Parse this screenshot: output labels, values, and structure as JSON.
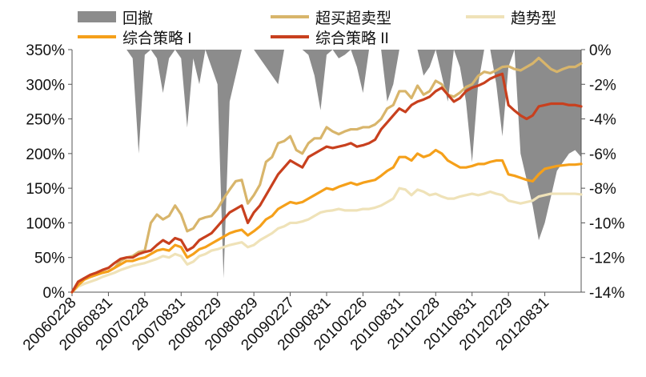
{
  "chart_data": {
    "type": "line",
    "x": [
      "20060228",
      "20060331",
      "20060428",
      "20060531",
      "20060630",
      "20060731",
      "20060831",
      "20060929",
      "20061031",
      "20061130",
      "20061229",
      "20070131",
      "20070228",
      "20070330",
      "20070430",
      "20070531",
      "20070629",
      "20070731",
      "20070831",
      "20070928",
      "20071031",
      "20071130",
      "20071228",
      "20080131",
      "20080229",
      "20080331",
      "20080430",
      "20080530",
      "20080630",
      "20080731",
      "20080829",
      "20080926",
      "20081031",
      "20081128",
      "20081231",
      "20090123",
      "20090227",
      "20090331",
      "20090430",
      "20090531",
      "20090630",
      "20090731",
      "20090831",
      "20090930",
      "20091030",
      "20091130",
      "20091231",
      "20100129",
      "20100226",
      "20100331",
      "20100430",
      "20100531",
      "20100630",
      "20100730",
      "20100831",
      "20100930",
      "20101029",
      "20101130",
      "20101231",
      "20110131",
      "20110228",
      "20110331",
      "20110429",
      "20110531",
      "20110630",
      "20110729",
      "20110831",
      "20110930",
      "20111031",
      "20111130",
      "20111230",
      "20120131",
      "20120229",
      "20120330",
      "20120427",
      "20120531",
      "20120629",
      "20120731",
      "20120831",
      "20120928",
      "20121031",
      "20121130",
      "20121231",
      "20130131",
      "20130228"
    ],
    "x_tick_labels": [
      "20060228",
      "20060831",
      "20070228",
      "20070831",
      "20080229",
      "20080829",
      "20090227",
      "20090831",
      "20100226",
      "20100831",
      "20110228",
      "20110831",
      "20120229",
      "20120831"
    ],
    "y_left": {
      "ticks": [
        "0%",
        "50%",
        "100%",
        "150%",
        "200%",
        "250%",
        "300%",
        "350%"
      ],
      "min": 0,
      "max": 350,
      "unit": "%"
    },
    "y_right": {
      "ticks": [
        "0%",
        "-2%",
        "-4%",
        "-6%",
        "-8%",
        "-10%",
        "-12%",
        "-14%"
      ],
      "min": -14,
      "max": 0,
      "unit": "%"
    },
    "legend": {
      "placement": "top",
      "entries": [
        "回撤",
        "超买超卖型",
        "趋势型",
        "综合策略 I",
        "综合策略 II"
      ]
    },
    "grid": false,
    "series": [
      {
        "name": "超买超卖型",
        "axis": "left",
        "type": "line",
        "color": "#d8b56b",
        "values": [
          0,
          15,
          20,
          22,
          25,
          28,
          30,
          35,
          45,
          50,
          52,
          58,
          60,
          100,
          112,
          105,
          110,
          125,
          112,
          88,
          92,
          105,
          108,
          110,
          120,
          135,
          148,
          160,
          162,
          128,
          140,
          155,
          188,
          195,
          215,
          218,
          225,
          205,
          200,
          215,
          222,
          222,
          238,
          232,
          228,
          232,
          235,
          235,
          238,
          238,
          242,
          250,
          265,
          270,
          290,
          290,
          280,
          298,
          285,
          290,
          305,
          300,
          285,
          282,
          288,
          296,
          300,
          312,
          318,
          316,
          320,
          325,
          326,
          322,
          320,
          325,
          330,
          338,
          330,
          322,
          318,
          322,
          325,
          325,
          330
        ]
      },
      {
        "name": "趋势型",
        "axis": "left",
        "type": "line",
        "color": "#efe2b8",
        "values": [
          0,
          8,
          12,
          15,
          18,
          22,
          25,
          28,
          32,
          35,
          38,
          40,
          42,
          45,
          48,
          52,
          50,
          55,
          52,
          40,
          44,
          52,
          55,
          60,
          62,
          65,
          68,
          70,
          72,
          65,
          68,
          75,
          80,
          85,
          92,
          95,
          100,
          100,
          102,
          105,
          110,
          115,
          117,
          118,
          120,
          118,
          118,
          118,
          120,
          120,
          122,
          125,
          130,
          135,
          150,
          148,
          140,
          148,
          145,
          140,
          142,
          138,
          135,
          135,
          138,
          140,
          142,
          140,
          142,
          145,
          142,
          140,
          132,
          130,
          128,
          130,
          132,
          138,
          140,
          142,
          142,
          142,
          142,
          142,
          141
        ]
      },
      {
        "name": "综合策略 I",
        "axis": "left",
        "type": "line",
        "color": "#f5a01a",
        "values": [
          0,
          10,
          18,
          22,
          25,
          28,
          30,
          35,
          40,
          45,
          45,
          48,
          50,
          55,
          60,
          62,
          60,
          68,
          65,
          50,
          55,
          62,
          65,
          70,
          75,
          80,
          85,
          88,
          90,
          82,
          88,
          95,
          105,
          110,
          120,
          125,
          130,
          128,
          130,
          135,
          140,
          145,
          150,
          148,
          152,
          155,
          158,
          155,
          158,
          160,
          162,
          168,
          175,
          180,
          195,
          195,
          190,
          200,
          195,
          198,
          205,
          200,
          190,
          185,
          180,
          180,
          182,
          185,
          185,
          188,
          190,
          190,
          170,
          168,
          165,
          162,
          160,
          170,
          178,
          180,
          182,
          183,
          184,
          184,
          185
        ]
      },
      {
        "name": "综合策略 II",
        "axis": "left",
        "type": "line",
        "color": "#c8401e",
        "values": [
          0,
          15,
          20,
          25,
          28,
          32,
          35,
          42,
          48,
          50,
          50,
          55,
          58,
          60,
          68,
          75,
          70,
          78,
          75,
          60,
          65,
          75,
          80,
          85,
          95,
          105,
          115,
          120,
          125,
          100,
          115,
          125,
          140,
          155,
          170,
          180,
          190,
          185,
          180,
          195,
          200,
          205,
          210,
          208,
          210,
          212,
          215,
          210,
          212,
          215,
          220,
          235,
          245,
          255,
          265,
          260,
          270,
          275,
          278,
          282,
          290,
          295,
          285,
          275,
          280,
          290,
          295,
          298,
          302,
          308,
          312,
          315,
          270,
          262,
          255,
          250,
          255,
          268,
          270,
          272,
          272,
          272,
          270,
          270,
          268
        ]
      },
      {
        "name": "回撤",
        "axis": "right",
        "type": "area",
        "color": "#8c8c8c",
        "values": [
          0,
          0,
          0,
          0,
          0,
          0,
          0,
          0,
          0,
          0,
          -0.5,
          -6,
          -0.3,
          0,
          -0.5,
          -2.5,
          -0.5,
          0,
          -0.5,
          -4.5,
          -0.5,
          -2,
          0,
          -1,
          -2,
          -13.2,
          -3,
          -1.5,
          0,
          0,
          0,
          -0.5,
          -1,
          -1.5,
          -2,
          0,
          0,
          0,
          0,
          -0.3,
          -1.5,
          -3.5,
          -0.3,
          0,
          -0.5,
          -0.3,
          0,
          -1,
          -2.5,
          0,
          0,
          0,
          -3,
          -2,
          0,
          0,
          0,
          0,
          -1.5,
          -1,
          0,
          -1.5,
          -3,
          0,
          -1,
          -3,
          -6.5,
          -2,
          0,
          0,
          -2,
          -5,
          -1,
          0,
          -6,
          -7.5,
          -9,
          -11,
          -10,
          -8.5,
          -7,
          -6.5,
          -6,
          -5.8,
          -6.2
        ]
      }
    ]
  }
}
